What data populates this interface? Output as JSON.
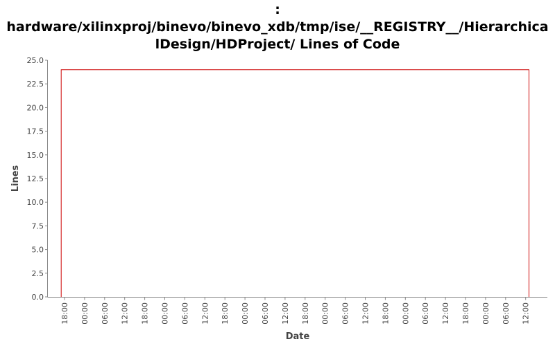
{
  "chart_data": {
    "type": "line",
    "title_lines": [
      ":",
      "hardware/xilinxproj/binevo/binevo_xdb/tmp/ise/__REGISTRY__/Hierarchica",
      "lDesign/HDProject/ Lines of Code"
    ],
    "xlabel": "Date",
    "ylabel": "Lines",
    "ylim": [
      0,
      25
    ],
    "yticks": [
      "0.0",
      "2.5",
      "5.0",
      "7.5",
      "10.0",
      "12.5",
      "15.0",
      "17.5",
      "20.0",
      "22.5",
      "25.0"
    ],
    "xticks": [
      "18:00",
      "00:00",
      "06:00",
      "12:00",
      "18:00",
      "00:00",
      "06:00",
      "12:00",
      "18:00",
      "00:00",
      "06:00",
      "12:00",
      "18:00",
      "00:00",
      "06:00",
      "12:00",
      "18:00",
      "00:00",
      "06:00",
      "12:00",
      "18:00",
      "00:00",
      "06:00",
      "12:00"
    ],
    "series": [
      {
        "color": "#cc0000",
        "points": [
          {
            "x": "17:00",
            "y": 0
          },
          {
            "x": "17:00",
            "y": 24
          },
          {
            "x": "13:00",
            "y": 24
          },
          {
            "x": "13:00",
            "y": 0
          }
        ]
      }
    ],
    "grid": false
  }
}
